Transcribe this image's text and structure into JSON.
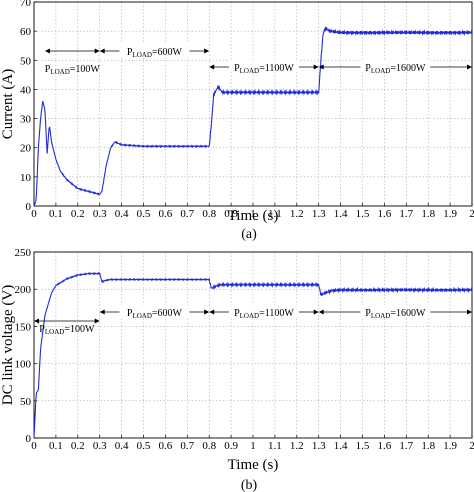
{
  "chart_data": [
    {
      "type": "line",
      "panel_label": "(a)",
      "xlabel": "Time (s)",
      "ylabel": "Current (A)",
      "xlim": [
        0,
        2
      ],
      "ylim": [
        0,
        70
      ],
      "xticks": [
        "0",
        "0.1",
        "0.2",
        "0.3",
        "0.4",
        "0.5",
        "0.6",
        "0.7",
        "0.8",
        "0.9",
        "1",
        "1.1",
        "1.2",
        "1.3",
        "1.4",
        "1.5",
        "1.6",
        "1.7",
        "1.8",
        "1.9",
        "2"
      ],
      "yticks": [
        "0",
        "10",
        "20",
        "30",
        "40",
        "50",
        "60",
        "70"
      ],
      "grid": true,
      "series": [
        {
          "color": "#1f2bd4",
          "x": [
            0,
            0.01,
            0.02,
            0.03,
            0.04,
            0.05,
            0.06,
            0.07,
            0.08,
            0.1,
            0.12,
            0.15,
            0.2,
            0.25,
            0.3,
            0.31,
            0.33,
            0.35,
            0.37,
            0.4,
            0.5,
            0.6,
            0.7,
            0.8,
            0.81,
            0.82,
            0.84,
            0.86,
            0.9,
            1.0,
            1.1,
            1.2,
            1.3,
            1.31,
            1.32,
            1.33,
            1.35,
            1.4,
            1.5,
            1.6,
            1.7,
            1.8,
            1.9,
            2.0
          ],
          "y": [
            0,
            2,
            20,
            30,
            36,
            33,
            18,
            28,
            22,
            16,
            12,
            9,
            6,
            5,
            4,
            5,
            14,
            20,
            22,
            21,
            20.5,
            20.5,
            20.5,
            20.5,
            28,
            38,
            41,
            39,
            39,
            39,
            39,
            39,
            39,
            50,
            59,
            61,
            60,
            59.5,
            59.5,
            59.5,
            59.5,
            59.5,
            59.5,
            59.5
          ]
        }
      ],
      "annotations": [
        {
          "main": "P",
          "sub": "LOAD",
          "rest": "=100W",
          "from": 0.05,
          "to": 0.3
        },
        {
          "main": "P",
          "sub": "LOAD",
          "rest": "=600W",
          "from": 0.3,
          "to": 0.8
        },
        {
          "main": "P",
          "sub": "LOAD",
          "rest": "=1100W",
          "from": 0.8,
          "to": 1.3
        },
        {
          "main": "P",
          "sub": "LOAD",
          "rest": "=1600W",
          "from": 1.3,
          "to": 2.0
        }
      ]
    },
    {
      "type": "line",
      "panel_label": "(b)",
      "xlabel": "Time (s)",
      "ylabel": "DC link voltage (V)",
      "xlim": [
        0,
        2
      ],
      "ylim": [
        0,
        250
      ],
      "xticks": [
        "0",
        "0.1",
        "0.2",
        "0.3",
        "0.4",
        "0.5",
        "0.6",
        "0.7",
        "0.8",
        "0.9",
        "1",
        "1.1",
        "1.2",
        "1.3",
        "1.4",
        "1.5",
        "1.6",
        "1.7",
        "1.8",
        "1.9",
        "2"
      ],
      "yticks": [
        "0",
        "50",
        "100",
        "150",
        "200",
        "250"
      ],
      "grid": true,
      "series": [
        {
          "color": "#1f2bd4",
          "x": [
            0,
            0.01,
            0.02,
            0.03,
            0.05,
            0.08,
            0.1,
            0.15,
            0.2,
            0.25,
            0.3,
            0.31,
            0.33,
            0.35,
            0.4,
            0.5,
            0.6,
            0.7,
            0.8,
            0.81,
            0.83,
            0.85,
            0.9,
            1.0,
            1.1,
            1.2,
            1.3,
            1.31,
            1.33,
            1.36,
            1.4,
            1.5,
            1.6,
            1.7,
            1.8,
            1.9,
            2.0
          ],
          "y": [
            0,
            60,
            65,
            120,
            165,
            195,
            205,
            214,
            219,
            221,
            221,
            210,
            212,
            213,
            213,
            213,
            213,
            213,
            213,
            201,
            204,
            206,
            206,
            206,
            206,
            206,
            206,
            192,
            195,
            198,
            199,
            199,
            199,
            199,
            199,
            199,
            199
          ]
        }
      ],
      "annotations": [
        {
          "main": "P",
          "sub": "LOAD",
          "rest": "=100W",
          "from": 0.0,
          "to": 0.3
        },
        {
          "main": "P",
          "sub": "LOAD",
          "rest": "=600W",
          "from": 0.3,
          "to": 0.8
        },
        {
          "main": "P",
          "sub": "LOAD",
          "rest": "=1100W",
          "from": 0.8,
          "to": 1.3
        },
        {
          "main": "P",
          "sub": "LOAD",
          "rest": "=1600W",
          "from": 1.3,
          "to": 2.0
        }
      ]
    }
  ]
}
